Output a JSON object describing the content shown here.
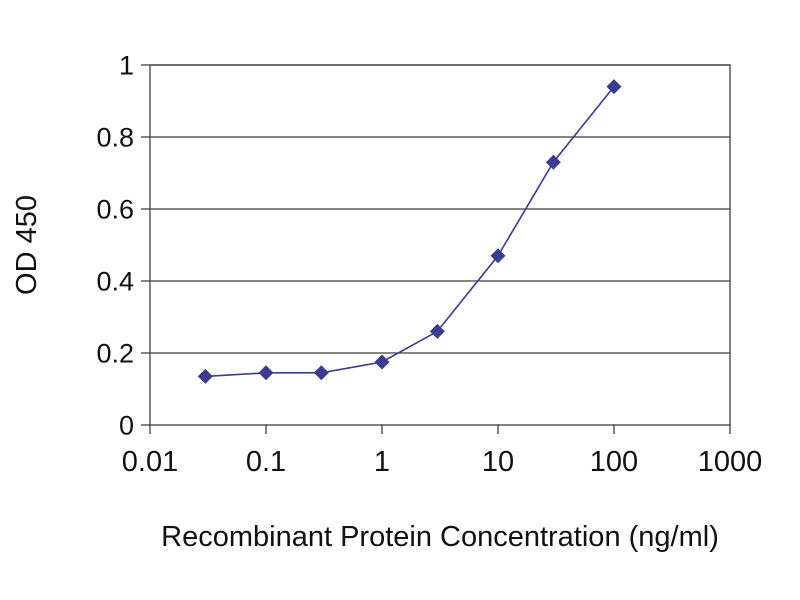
{
  "chart_data": {
    "type": "line",
    "title": "",
    "xlabel": "Recombinant Protein Concentration (ng/ml)",
    "ylabel": "OD 450",
    "x_scale": "log",
    "xlim": [
      0.01,
      1000
    ],
    "ylim": [
      0,
      1
    ],
    "x": [
      0.03,
      0.1,
      0.3,
      1,
      3,
      10,
      30,
      100
    ],
    "y": [
      0.135,
      0.145,
      0.145,
      0.175,
      0.26,
      0.47,
      0.73,
      0.94
    ],
    "x_ticks": [
      0.01,
      0.1,
      1,
      10,
      100,
      1000
    ],
    "x_tick_labels": [
      "0.01",
      "0.1",
      "1",
      "10",
      "100",
      "1000"
    ],
    "y_ticks": [
      0,
      0.2,
      0.4,
      0.6,
      0.8,
      1
    ],
    "y_tick_labels": [
      "0",
      "0.2",
      "0.4",
      "0.6",
      "0.8",
      "1"
    ],
    "grid": "horizontal",
    "legend": "none",
    "marker": "diamond",
    "line_color": "#3b3b8f",
    "marker_color": "#3b3b8f",
    "axis_color": "#3f3f3f",
    "text_color": "#111111"
  }
}
